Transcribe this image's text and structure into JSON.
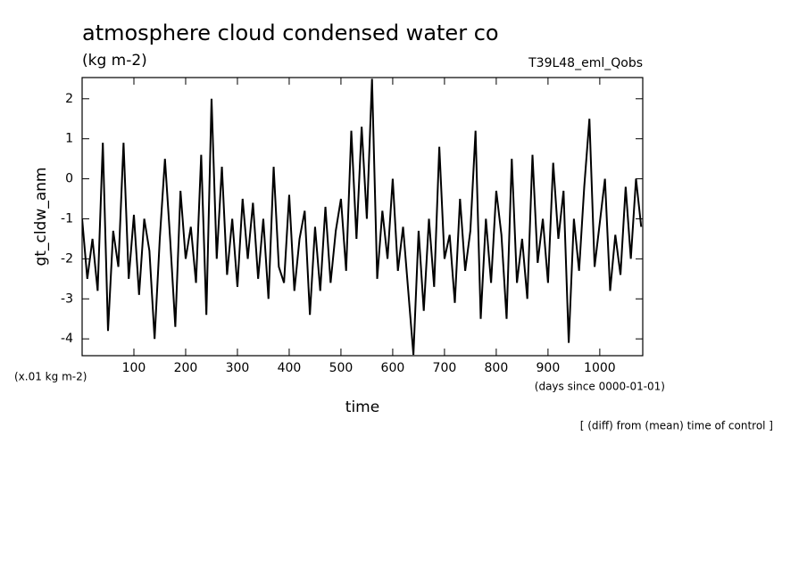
{
  "chart_data": {
    "type": "line",
    "title": "atmosphere cloud condensed water co",
    "subtitle": "(kg m-2)",
    "run_label": "T39L48_eml_Qobs",
    "ylabel": "gt_cldw_anm",
    "y_unit_label": "(x.01 kg m-2)",
    "xlabel": "time",
    "x_unit_label": "(days since 0000-01-01)",
    "annotation": "[ (diff) from (mean) time of control ]",
    "color": "#000000",
    "xlim": [
      0,
      1083
    ],
    "ylim": [
      -4.42,
      2.53
    ],
    "xticks": [
      100,
      200,
      300,
      400,
      500,
      600,
      700,
      800,
      900,
      1000
    ],
    "yticks": [
      -4,
      -3,
      -2,
      -1,
      0,
      1,
      2
    ],
    "x": [
      0,
      10,
      20,
      30,
      40,
      50,
      60,
      70,
      80,
      90,
      100,
      110,
      120,
      130,
      140,
      150,
      160,
      170,
      180,
      190,
      200,
      210,
      220,
      230,
      240,
      250,
      260,
      270,
      280,
      290,
      300,
      310,
      320,
      330,
      340,
      350,
      360,
      370,
      380,
      390,
      400,
      410,
      420,
      430,
      440,
      450,
      460,
      470,
      480,
      490,
      500,
      510,
      520,
      530,
      540,
      550,
      560,
      570,
      580,
      590,
      600,
      610,
      620,
      630,
      640,
      650,
      660,
      670,
      680,
      690,
      700,
      710,
      720,
      730,
      740,
      750,
      760,
      770,
      780,
      790,
      800,
      810,
      820,
      830,
      840,
      850,
      860,
      870,
      880,
      890,
      900,
      910,
      920,
      930,
      940,
      950,
      960,
      970,
      980,
      990,
      1000,
      1010,
      1020,
      1030,
      1040,
      1050,
      1060,
      1070,
      1080
    ],
    "values": [
      -1.0,
      -2.5,
      -1.5,
      -2.8,
      0.9,
      -3.8,
      -1.3,
      -2.2,
      0.9,
      -2.5,
      -0.9,
      -2.9,
      -1.0,
      -1.8,
      -4.0,
      -1.5,
      0.5,
      -1.5,
      -3.7,
      -0.3,
      -2.0,
      -1.2,
      -2.6,
      0.6,
      -3.4,
      2.0,
      -2.0,
      0.3,
      -2.4,
      -1.0,
      -2.7,
      -0.5,
      -2.0,
      -0.6,
      -2.5,
      -1.0,
      -3.0,
      0.3,
      -2.2,
      -2.6,
      -0.4,
      -2.8,
      -1.5,
      -0.8,
      -3.4,
      -1.2,
      -2.8,
      -0.7,
      -2.6,
      -1.3,
      -0.5,
      -2.3,
      1.2,
      -1.5,
      1.3,
      -1.0,
      2.5,
      -2.5,
      -0.8,
      -2.0,
      0.0,
      -2.3,
      -1.2,
      -2.8,
      -4.4,
      -1.3,
      -3.3,
      -1.0,
      -2.7,
      0.8,
      -2.0,
      -1.4,
      -3.1,
      -0.5,
      -2.3,
      -1.3,
      1.2,
      -3.5,
      -1.0,
      -2.6,
      -0.3,
      -1.4,
      -3.5,
      0.5,
      -2.6,
      -1.5,
      -3.0,
      0.6,
      -2.1,
      -1.0,
      -2.6,
      0.4,
      -1.5,
      -0.3,
      -4.1,
      -1.0,
      -2.3,
      -0.2,
      1.5,
      -2.2,
      -1.1,
      0.0,
      -2.8,
      -1.4,
      -2.4,
      -0.2,
      -2.0,
      0.0,
      -1.2
    ]
  }
}
